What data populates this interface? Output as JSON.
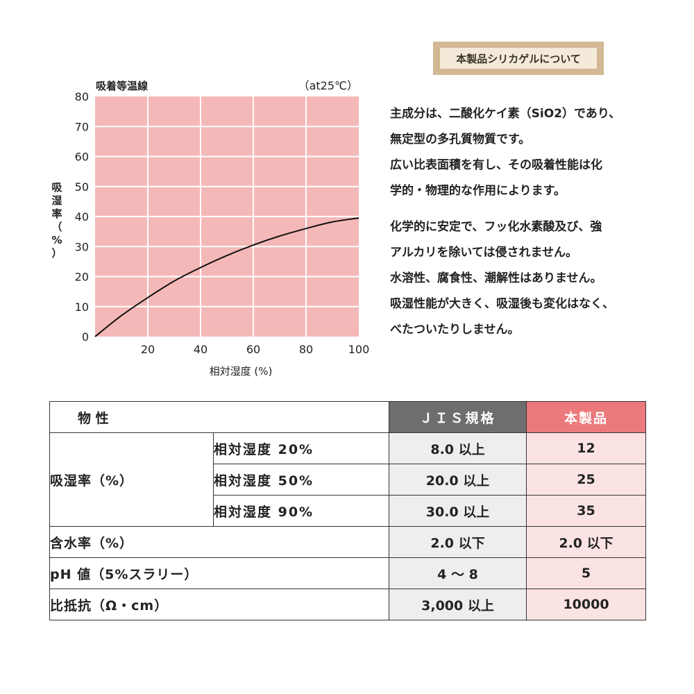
{
  "chart_data": {
    "type": "line",
    "title": "吸着等温線",
    "subtitle": "（at25℃）",
    "xlabel": "相対湿度 (%)",
    "ylabel": "吸湿率（%）",
    "xlim": [
      0,
      100
    ],
    "ylim": [
      0,
      80
    ],
    "xticks": [
      20,
      40,
      60,
      80,
      100
    ],
    "yticks": [
      0,
      10,
      20,
      30,
      40,
      50,
      60,
      70,
      80
    ],
    "grid": true,
    "plot_bg": "#f5b8b8",
    "line_color": "#111111",
    "x": [
      0,
      10,
      20,
      30,
      40,
      50,
      60,
      70,
      80,
      90,
      100
    ],
    "y": [
      0,
      7,
      13,
      18.5,
      23,
      27,
      30.5,
      33.5,
      36,
      38.2,
      39.5
    ]
  },
  "info": {
    "badge": "本製品シリカゲルについて",
    "para1": [
      "主成分は、二酸化ケイ素（SiO2）であり、",
      "無定型の多孔質物質です。",
      "広い比表面積を有し、その吸着性能は化",
      "学的・物理的な作用によります。"
    ],
    "para2": [
      "化学的に安定で、フッ化水素酸及び、強",
      "アルカリを除いては侵されません。",
      "水溶性、腐食性、潮解性はありません。",
      "吸湿性能が大きく、吸湿後も変化はなく、",
      "べたついたりしません。"
    ]
  },
  "table": {
    "headers": {
      "property": "物 性",
      "jis": "ＪＩＳ規格",
      "product": "本製品"
    },
    "absorption": {
      "label": "吸湿率（%）",
      "rows": [
        {
          "condition": "相対湿度 20%",
          "jis": "8.0 以上",
          "product": "12"
        },
        {
          "condition": "相対湿度 50%",
          "jis": "20.0 以上",
          "product": "25"
        },
        {
          "condition": "相対湿度 90%",
          "jis": "30.0 以上",
          "product": "35"
        }
      ]
    },
    "rows": [
      {
        "label": "含水率（%）",
        "jis": "2.0 以下",
        "product": "2.0 以下"
      },
      {
        "label": "pH 値（5%スラリー）",
        "jis": "4 ～ 8",
        "product": "5"
      },
      {
        "label": "比抵抗（Ω・cm）",
        "jis": "3,000 以上",
        "product": "10000"
      }
    ]
  },
  "colors": {
    "jis_header": "#6f6d6d",
    "product_header": "#ec7a7c",
    "badge_border": "#d3b894"
  }
}
